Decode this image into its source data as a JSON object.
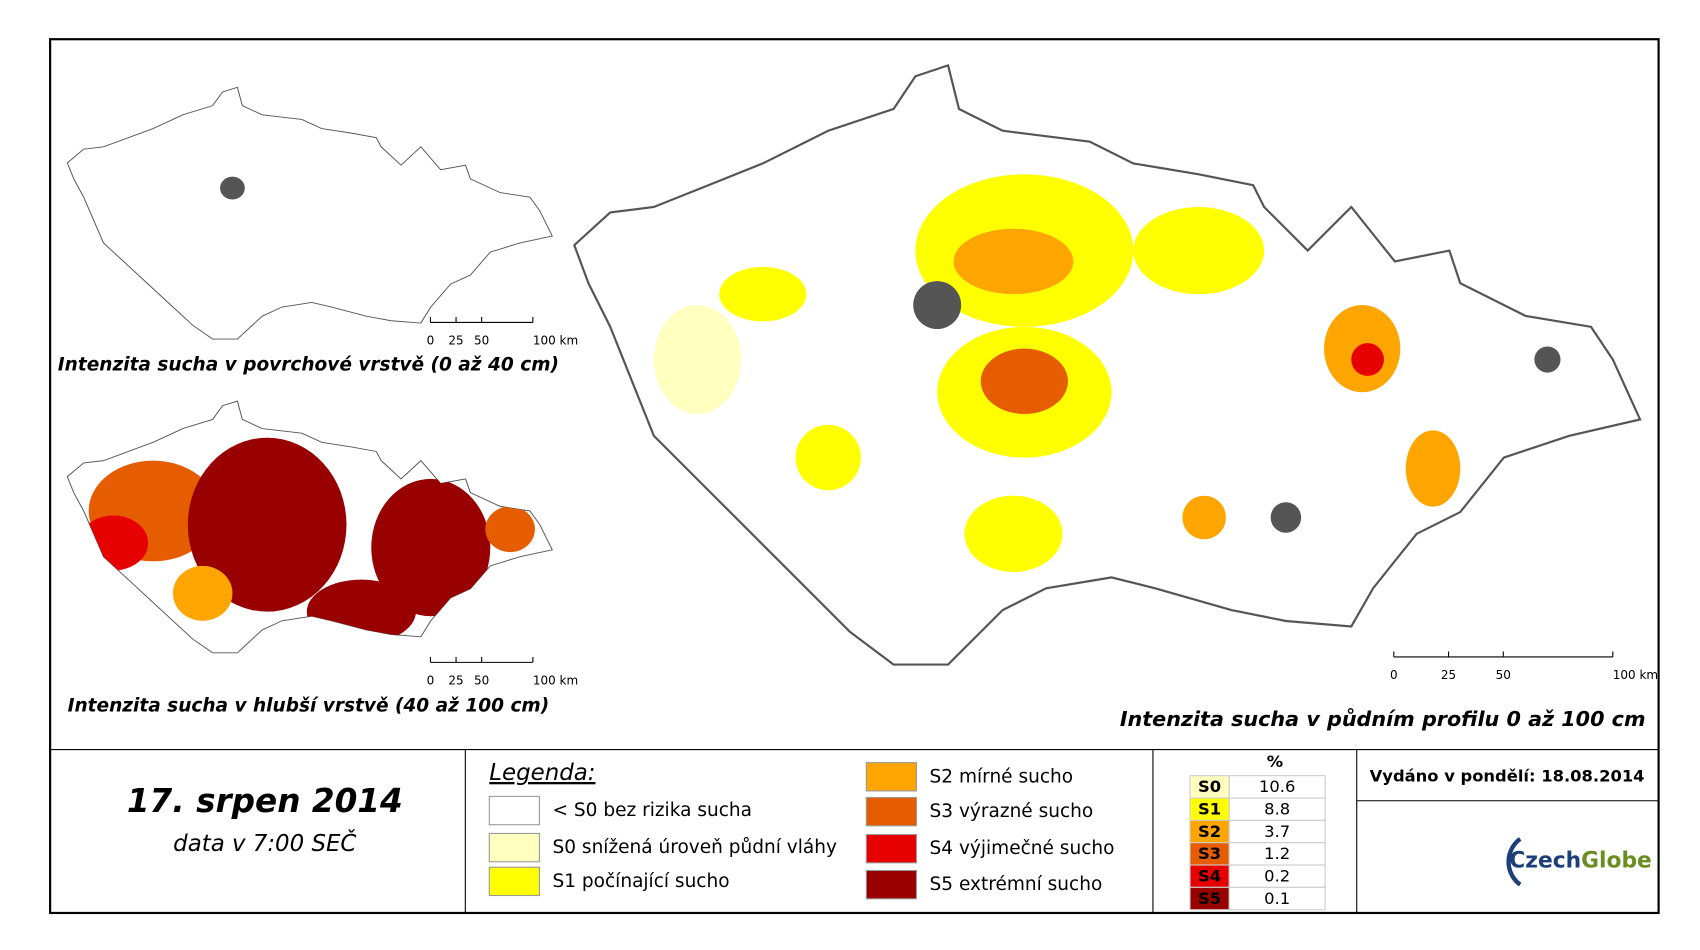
{
  "maps": [
    {
      "title": "Intenzita sucha v povrchové vrstvě (0 až 40 cm)",
      "scale": [
        "0",
        "25",
        "50",
        "100 km"
      ]
    },
    {
      "title": "Intenzita sucha v hlubší vrstvě (40 až 100 cm)",
      "scale": [
        "0",
        "25",
        "50",
        "100 km"
      ]
    },
    {
      "title": "Intenzita sucha v půdním profilu 0 až 100 cm",
      "scale": [
        "0",
        "25",
        "50",
        "100 km"
      ]
    }
  ],
  "date": "17. srpen 2014",
  "time": "data v 7:00 SEČ",
  "legend": {
    "title": "Legenda:",
    "items": [
      {
        "label": "< S0 bez rizika sucha",
        "color": "#ffffff"
      },
      {
        "label": "S0 snížená úroveň půdní vláhy",
        "color": "#ffffc0"
      },
      {
        "label": "S1 počínající sucho",
        "color": "#ffff00"
      },
      {
        "label": "S2 mírné sucho",
        "color": "#ffa500"
      },
      {
        "label": "S3 výrazné sucho",
        "color": "#e65c00"
      },
      {
        "label": "S4 výjimečné sucho",
        "color": "#e60000"
      },
      {
        "label": "S5 extrémní sucho",
        "color": "#990000"
      }
    ]
  },
  "stats": {
    "header": "%",
    "rows": [
      {
        "code": "S0",
        "value": 10.6,
        "color": "#ffffc0"
      },
      {
        "code": "S1",
        "value": 8.8,
        "color": "#ffff00"
      },
      {
        "code": "S2",
        "value": 3.7,
        "color": "#ffa500"
      },
      {
        "code": "S3",
        "value": 1.2,
        "color": "#e65c00"
      },
      {
        "code": "S4",
        "value": 0.2,
        "color": "#e60000"
      },
      {
        "code": "S5",
        "value": 0.1,
        "color": "#990000"
      }
    ]
  },
  "issued": "Vydáno v pondělí: 18.08.2014",
  "logo": {
    "first": "Czech",
    "second": "Globe"
  }
}
